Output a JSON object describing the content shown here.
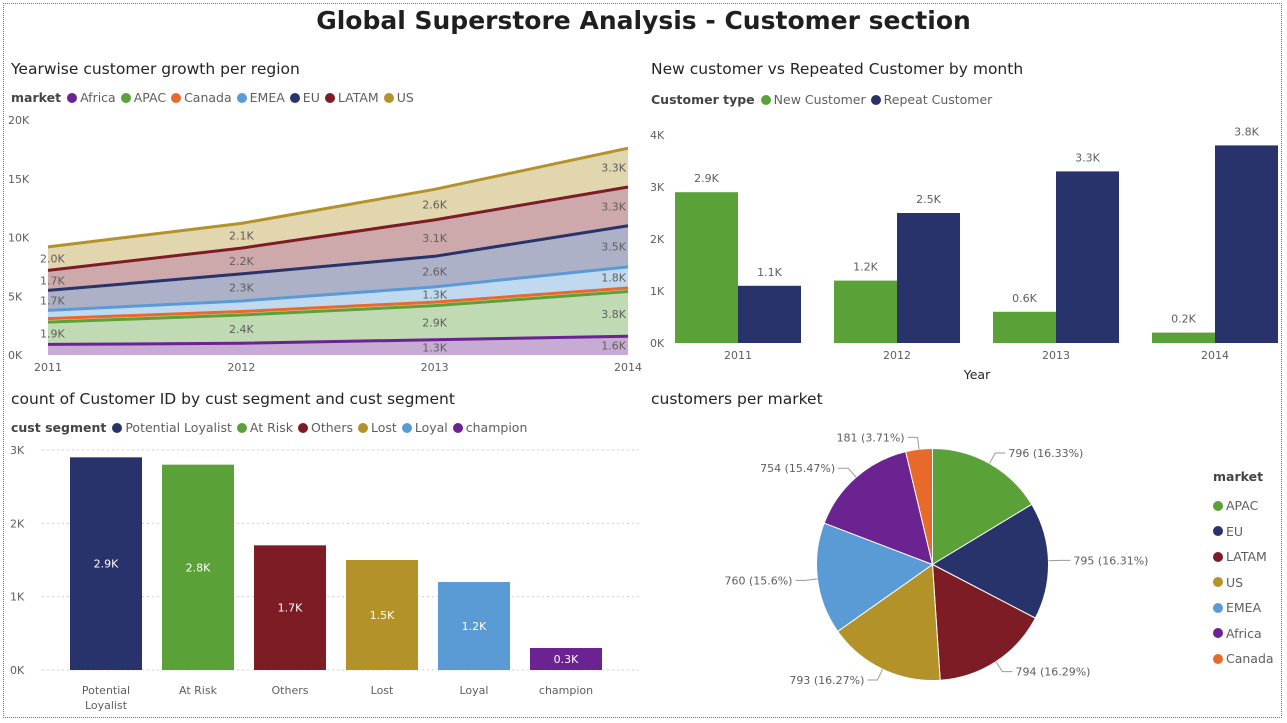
{
  "page": {
    "title": "Global Superstore Analysis - Customer section"
  },
  "colors": {
    "Africa": "#6b2391",
    "APAC": "#5aa137",
    "Canada": "#e86a2a",
    "EMEA": "#5b9bd5",
    "EU": "#28336b",
    "LATAM": "#7e1c26",
    "US": "#b3922a",
    "New Customer": "#5aa137",
    "Repeat Customer": "#28336b",
    "Potential Loyalist": "#28336b",
    "At Risk": "#5aa137",
    "Others": "#7e1c26",
    "Lost": "#b3922a",
    "Loyal": "#5b9bd5",
    "champion": "#6b2391"
  },
  "chart_data": [
    {
      "id": "area",
      "type": "area",
      "title": "Yearwise customer growth per region",
      "legend_title": "market",
      "legend": [
        "Africa",
        "APAC",
        "Canada",
        "EMEA",
        "EU",
        "LATAM",
        "US"
      ],
      "x": [
        "2011",
        "2012",
        "2013",
        "2014"
      ],
      "stacked": true,
      "ylim": [
        0,
        20000
      ],
      "yticks": [
        "0K",
        "5K",
        "10K",
        "15K",
        "20K"
      ],
      "series": [
        {
          "name": "Africa",
          "values": [
            900,
            1000,
            1300,
            1600
          ],
          "labels": [
            "",
            "",
            "1.3K",
            "1.6K"
          ]
        },
        {
          "name": "APAC",
          "values": [
            1900,
            2400,
            2900,
            3800
          ],
          "labels": [
            "1.9K",
            "2.4K",
            "2.9K",
            "3.8K"
          ]
        },
        {
          "name": "Canada",
          "values": [
            300,
            300,
            300,
            300
          ],
          "labels": [
            "",
            "",
            "",
            ""
          ]
        },
        {
          "name": "EMEA",
          "values": [
            700,
            900,
            1300,
            1800
          ],
          "labels": [
            "",
            "",
            "1.3K",
            "1.8K"
          ]
        },
        {
          "name": "EU",
          "values": [
            1700,
            2300,
            2600,
            3500
          ],
          "labels": [
            "1.7K",
            "2.3K",
            "2.6K",
            "3.5K"
          ]
        },
        {
          "name": "LATAM",
          "values": [
            1700,
            2200,
            3100,
            3300
          ],
          "labels": [
            "1.7K",
            "2.2K",
            "3.1K",
            "3.3K"
          ]
        },
        {
          "name": "US",
          "values": [
            2000,
            2100,
            2600,
            3300
          ],
          "labels": [
            "2.0K",
            "2.1K",
            "2.6K",
            "3.3K"
          ]
        }
      ]
    },
    {
      "id": "newrep",
      "type": "bar",
      "title": "New customer vs Repeated Customer by month",
      "legend_title": "Customer type",
      "xlabel": "Year",
      "categories": [
        "2011",
        "2012",
        "2013",
        "2014"
      ],
      "ylim": [
        0,
        4000
      ],
      "yticks": [
        "0K",
        "1K",
        "2K",
        "3K",
        "4K"
      ],
      "series": [
        {
          "name": "New Customer",
          "values": [
            2900,
            1200,
            600,
            200
          ],
          "labels": [
            "2.9K",
            "1.2K",
            "0.6K",
            "0.2K"
          ]
        },
        {
          "name": "Repeat Customer",
          "values": [
            1100,
            2500,
            3300,
            3800
          ],
          "labels": [
            "1.1K",
            "2.5K",
            "3.3K",
            "3.8K"
          ]
        }
      ]
    },
    {
      "id": "segment",
      "type": "bar",
      "title": "count of Customer ID by cust segment and cust segment",
      "legend_title": "cust segment",
      "categories": [
        "Potential Loyalist",
        "At Risk",
        "Others",
        "Lost",
        "Loyal",
        "champion"
      ],
      "tick_lines": [
        [
          "Potential",
          "Loyalist"
        ],
        [
          "At Risk"
        ],
        [
          "Others"
        ],
        [
          "Lost"
        ],
        [
          "Loyal"
        ],
        [
          "champion"
        ]
      ],
      "values": [
        2900,
        2800,
        1700,
        1500,
        1200,
        300
      ],
      "labels": [
        "2.9K",
        "2.8K",
        "1.7K",
        "1.5K",
        "1.2K",
        "0.3K"
      ],
      "ylim": [
        0,
        3000
      ],
      "yticks": [
        "0K",
        "1K",
        "2K",
        "3K"
      ]
    },
    {
      "id": "pie",
      "type": "pie",
      "title": "customers per market",
      "legend_title": "market",
      "slices": [
        {
          "name": "APAC",
          "value": 796,
          "label": "796 (16.33%)"
        },
        {
          "name": "EU",
          "value": 795,
          "label": "795 (16.31%)"
        },
        {
          "name": "LATAM",
          "value": 794,
          "label": "794 (16.29%)"
        },
        {
          "name": "US",
          "value": 793,
          "label": "793 (16.27%)"
        },
        {
          "name": "EMEA",
          "value": 760,
          "label": "760 (15.6%)"
        },
        {
          "name": "Africa",
          "value": 754,
          "label": "754 (15.47%)"
        },
        {
          "name": "Canada",
          "value": 181,
          "label": "181 (3.71%)"
        }
      ]
    }
  ]
}
